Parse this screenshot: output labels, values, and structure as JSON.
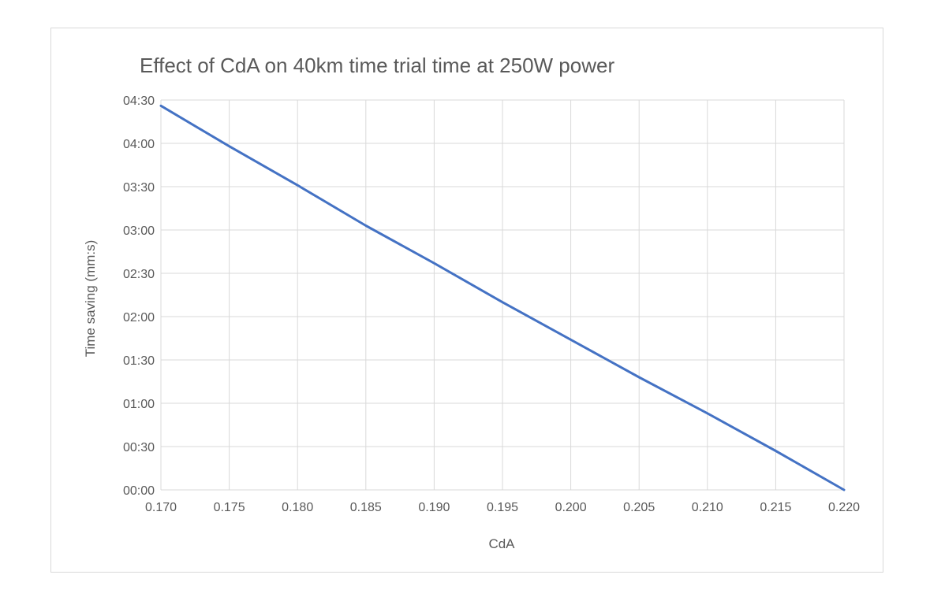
{
  "chart_data": {
    "type": "line",
    "title": "Effect of CdA on 40km time trial time at 250W power",
    "xlabel": "CdA",
    "ylabel": "Time saving (mm:s)",
    "xlim": [
      0.17,
      0.22
    ],
    "ylim_seconds": [
      0,
      270
    ],
    "x_ticks": [
      0.17,
      0.175,
      0.18,
      0.185,
      0.19,
      0.195,
      0.2,
      0.205,
      0.21,
      0.215,
      0.22
    ],
    "x_tick_labels": [
      "0.170",
      "0.175",
      "0.180",
      "0.185",
      "0.190",
      "0.195",
      "0.200",
      "0.205",
      "0.210",
      "0.215",
      "0.220"
    ],
    "y_ticks_seconds": [
      0,
      30,
      60,
      90,
      120,
      150,
      180,
      210,
      240,
      270
    ],
    "y_tick_labels": [
      "00:00",
      "00:30",
      "01:00",
      "01:30",
      "02:00",
      "02:30",
      "03:00",
      "03:30",
      "04:00",
      "04:30"
    ],
    "grid": true,
    "line_color": "#4472c4",
    "series": [
      {
        "x": [
          0.17,
          0.175,
          0.18,
          0.185,
          0.19,
          0.195,
          0.2,
          0.205,
          0.21,
          0.215,
          0.22
        ],
        "y_seconds": [
          266,
          238,
          211,
          183,
          157,
          130,
          104,
          78,
          53,
          27,
          0
        ]
      }
    ]
  }
}
